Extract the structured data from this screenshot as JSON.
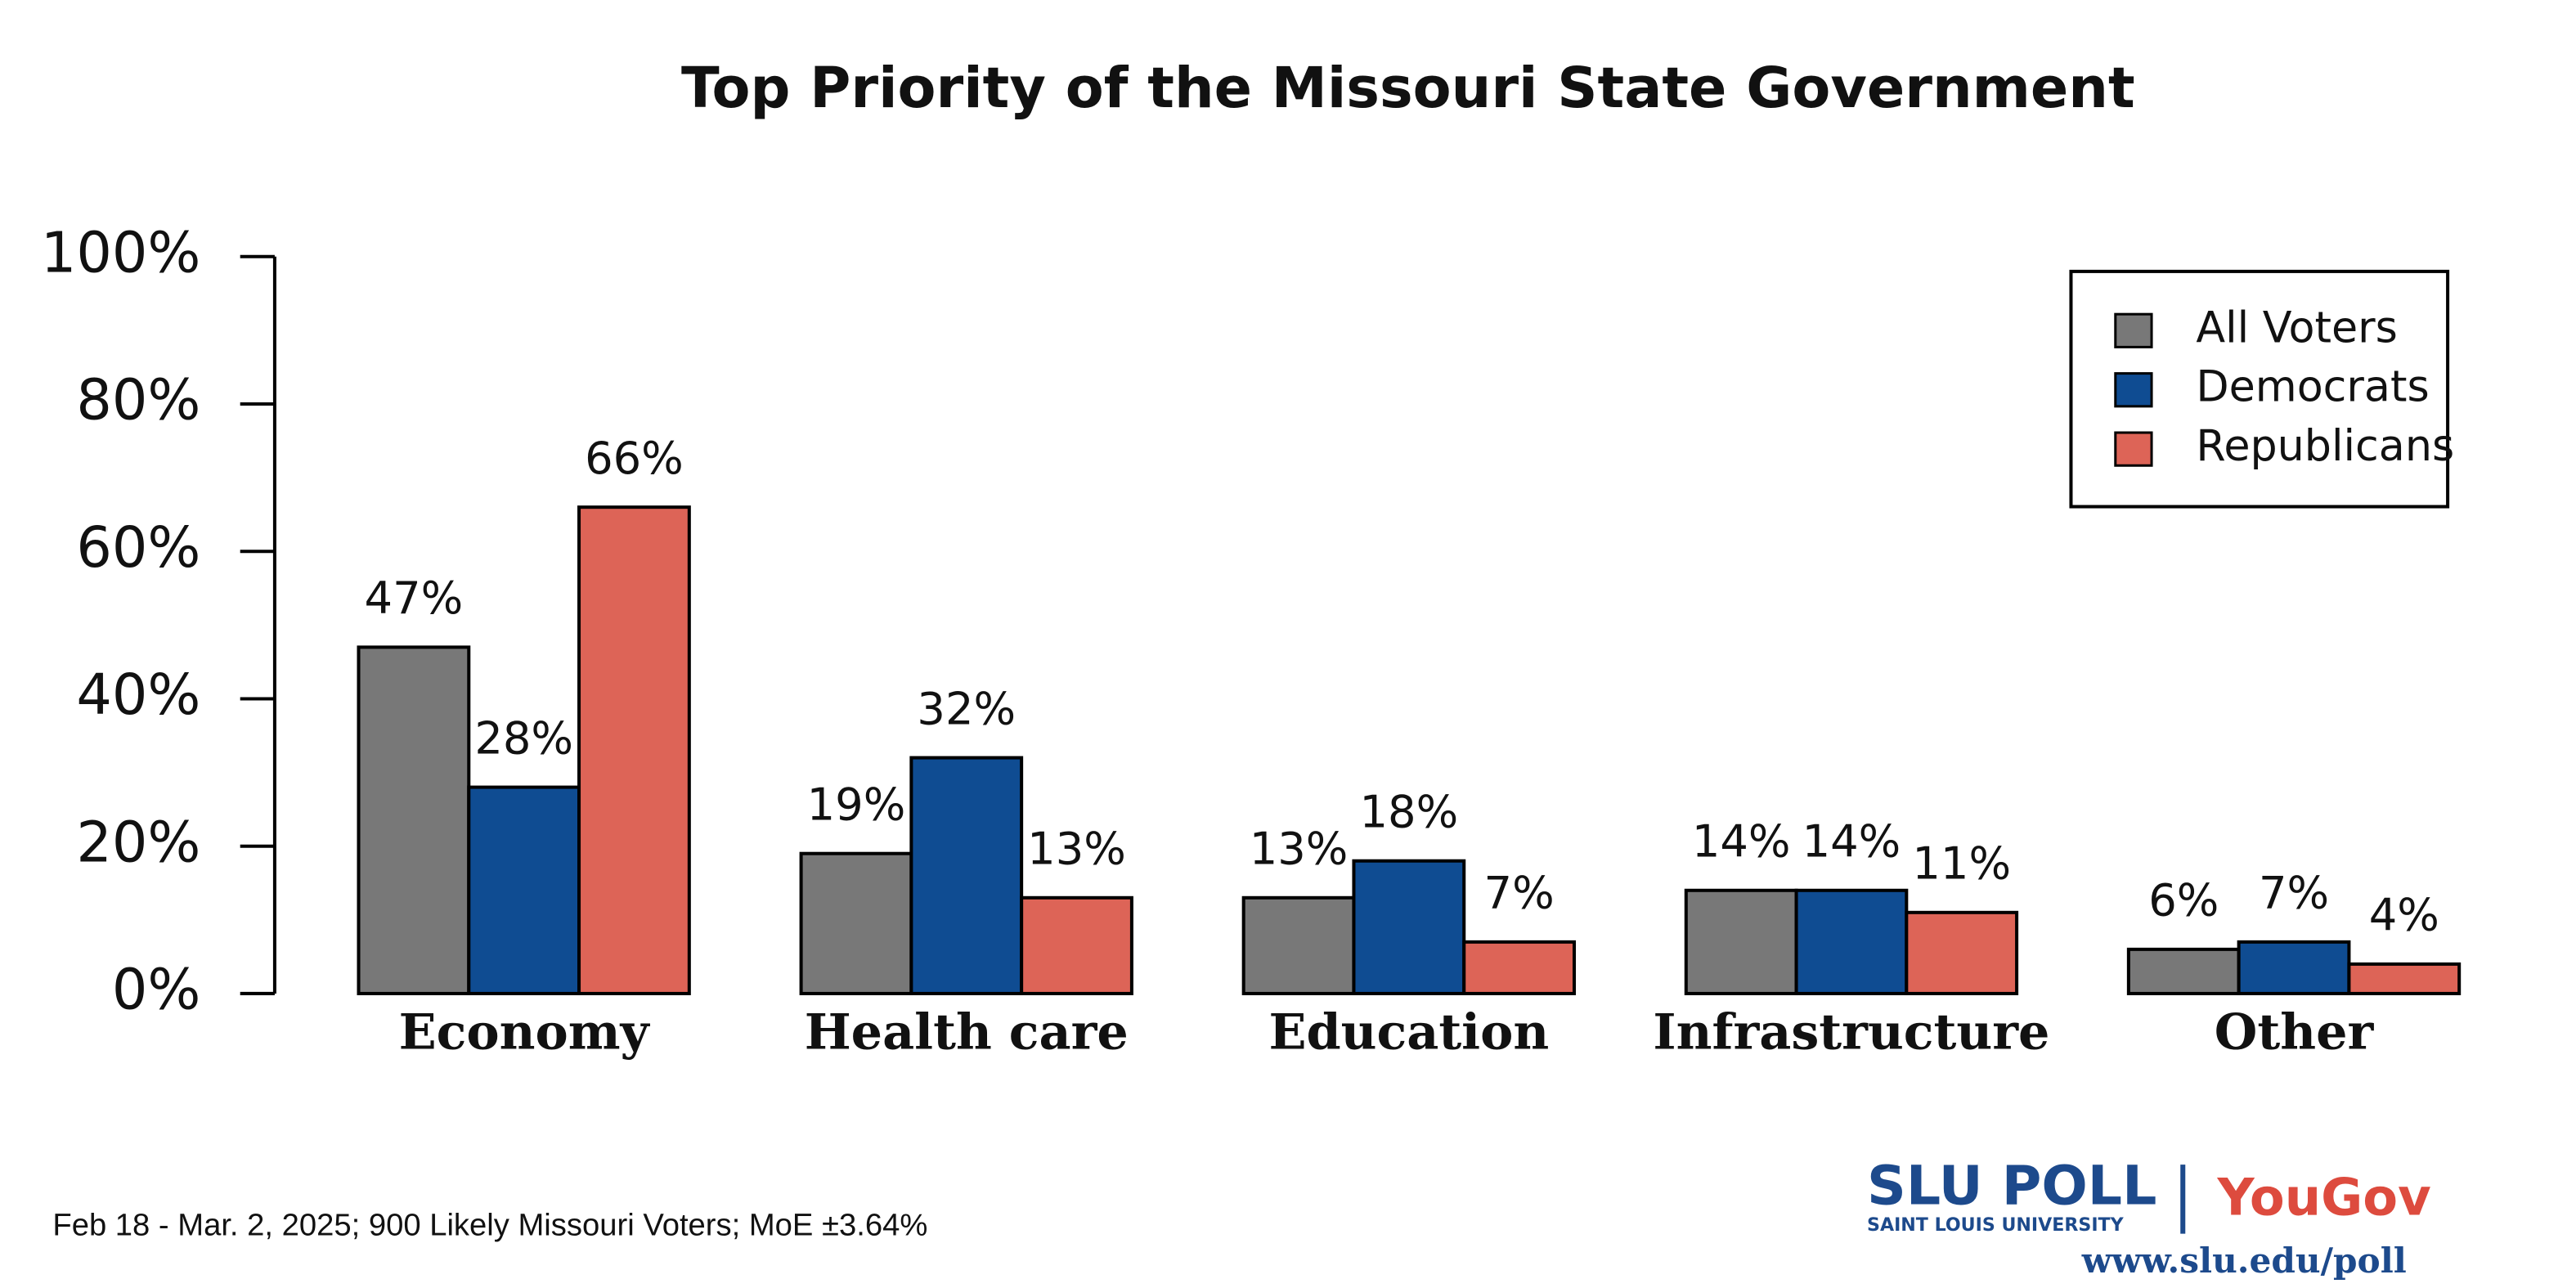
{
  "chart_data": {
    "type": "bar",
    "title": "Top Priority of the Missouri State Government",
    "categories": [
      "Economy",
      "Health care",
      "Education",
      "Infrastructure",
      "Other"
    ],
    "series": [
      {
        "name": "All Voters",
        "color": "#787878",
        "values": [
          47,
          19,
          13,
          14,
          6
        ],
        "value_labels": [
          "47%",
          "19%",
          "13%",
          "14%",
          "6%"
        ]
      },
      {
        "name": "Democrats",
        "color": "#0f4c92",
        "values": [
          28,
          32,
          18,
          14,
          7
        ],
        "value_labels": [
          "28%",
          "32%",
          "18%",
          "14%",
          "7%"
        ]
      },
      {
        "name": "Republicans",
        "color": "#dd6457",
        "values": [
          66,
          13,
          7,
          11,
          4
        ],
        "value_labels": [
          "66%",
          "13%",
          "7%",
          "11%",
          "4%"
        ]
      }
    ],
    "ylim": [
      0,
      100
    ],
    "yticks": [
      {
        "value": 0,
        "label": "0%"
      },
      {
        "value": 20,
        "label": "20%"
      },
      {
        "value": 40,
        "label": "40%"
      },
      {
        "value": 60,
        "label": "60%"
      },
      {
        "value": 80,
        "label": "80%"
      },
      {
        "value": 100,
        "label": "100%"
      }
    ],
    "legend": "top-right",
    "source": "Feb 18 - Mar. 2, 2025; 900 Likely Missouri Voters; MoE ±3.64%",
    "logo": {
      "slu": "SLU POLL",
      "slu_sub": "SAINT LOUIS UNIVERSITY",
      "yougov": "YouGov",
      "url": "www.slu.edu/poll"
    }
  }
}
